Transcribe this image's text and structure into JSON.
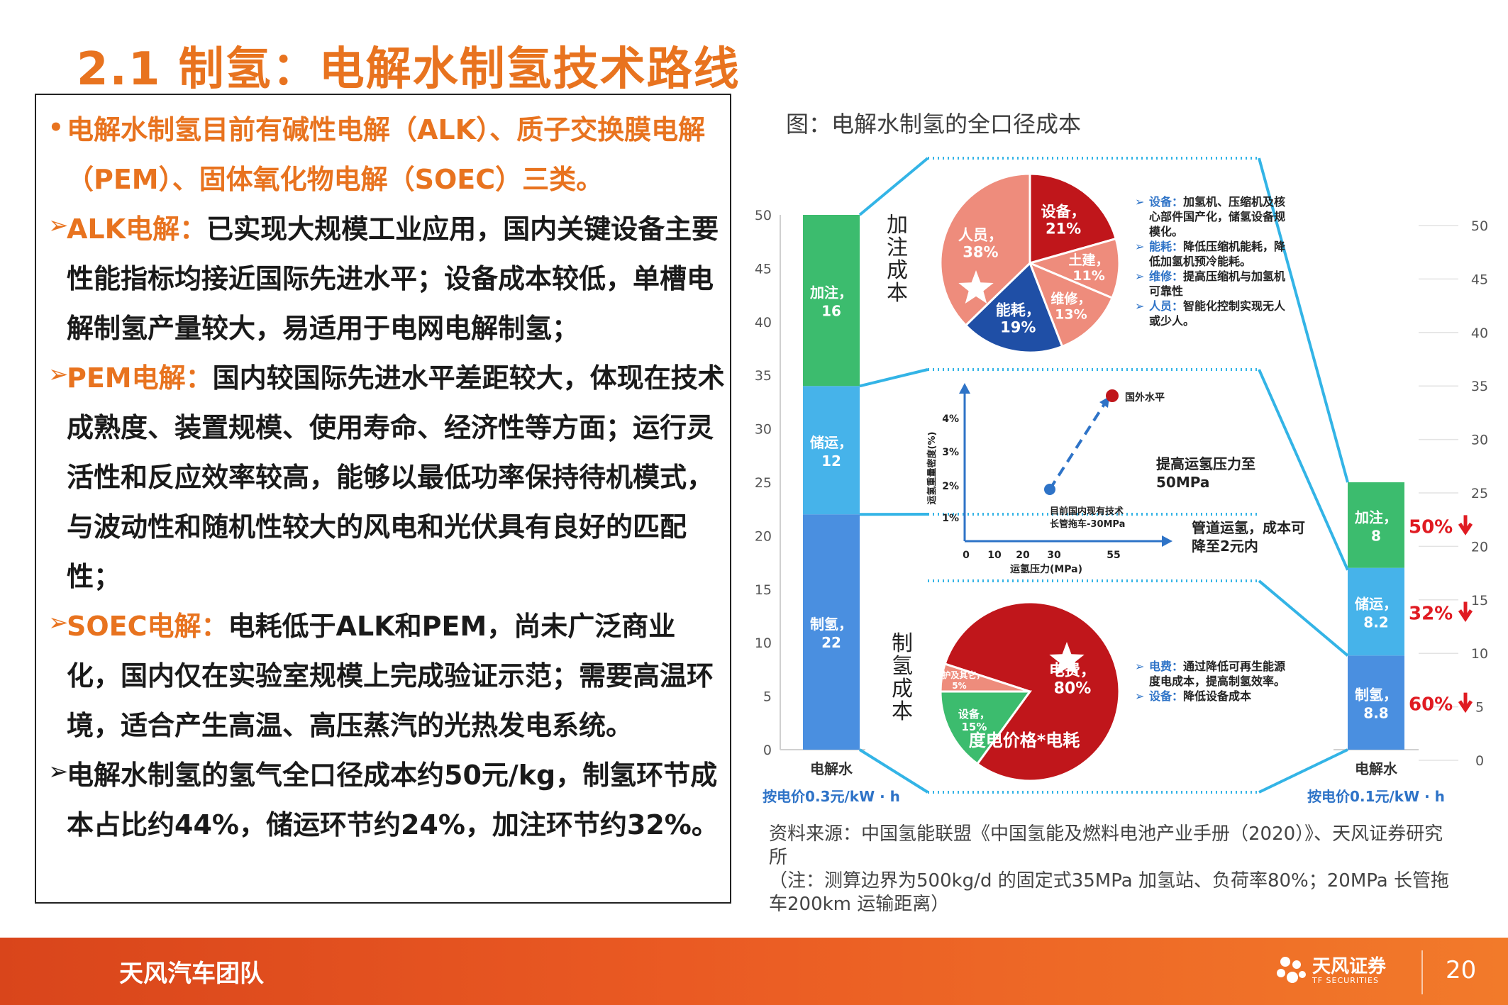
{
  "title": "2.1 制氢：电解水制氢技术路线",
  "left": {
    "p1": "电解水制氢目前有碱性电解（ALK）、质子交换膜电解（PEM）、固体氧化物电解（SOEC）三类。",
    "p2_lead": "ALK电解：",
    "p2": "已实现大规模工业应用，国内关键设备主要性能指标均接近国际先进水平；设备成本较低，单槽电解制氢产量较大，易适用于电网电解制氢；",
    "p3_lead": "PEM电解：",
    "p3": "国内较国际先进水平差距较大，体现在技术成熟度、装置规模、使用寿命、经济性等方面；运行灵活性和反应效率较高，能够以最低功率保持待机模式，与波动性和随机性较大的风电和光伏具有良好的匹配性；",
    "p4_lead": "SOEC电解：",
    "p4": "电耗低于ALK和PEM，尚未广泛商业化，国内仅在实验室规模上完成验证示范；需要高温环境，适合产生高温、高压蒸汽的光热发电系统。",
    "p5": "电解水制氢的氢气全口径成本约50元/kg，制氢环节成本占比约44%，储运环节约24%，加注环节约32%。"
  },
  "figure": {
    "caption": "图：电解水制氢的全口径成本",
    "left_bar_label": "电解水",
    "left_bar_price": "按电价0.3元/kW · h",
    "right_bar_label": "电解水",
    "right_bar_price": "按电价0.1元/kW · h",
    "refuel_vertical": "加注成本",
    "produce_vertical": "制氢成本",
    "pie_top_notes": [
      "设备：加氢机、压缩机及核心部件国产化，储氢设备规模化。",
      "能耗：降低压缩机能耗，降低加氢机预冷能耗。",
      "维修：提高压缩机与加氢机可靠性",
      "人员：智能化控制实现无人或少人。"
    ],
    "pie_bottom_notes": [
      "电费：通过降低可再生能源度电成本，提高制氢效率。",
      "设备：降低设备成本"
    ],
    "pie_bottom_center": "度电价格*电耗",
    "line_ylabel": "运氢重量密度(%)",
    "line_xlabel": "运氢压力(MPa)",
    "line_point_high": "国外水平",
    "line_point_low": "目前国内现有技术长管拖车-30MPa",
    "line_note1": "提高运氢压力至50MPa",
    "line_note2": "管道运氢，成本可降至2元内"
  },
  "chart_data": [
    {
      "type": "bar",
      "stacked": true,
      "categories": [
        "电解水（按电价0.3元/kW · h）",
        "电解水（按电价0.1元/kW · h）"
      ],
      "series": [
        {
          "name": "制氢",
          "values": [
            22,
            8.8
          ],
          "color": "#4a8fe0"
        },
        {
          "name": "储运",
          "values": [
            12,
            8.2
          ],
          "color": "#46b3ea"
        },
        {
          "name": "加注",
          "values": [
            16,
            8
          ],
          "color": "#3cbc6e"
        }
      ],
      "reductions": [
        "60%",
        "32%",
        "50%"
      ],
      "ylim": [
        0,
        50
      ],
      "yticks": [
        0,
        5,
        10,
        15,
        20,
        25,
        30,
        35,
        40,
        45,
        50
      ]
    },
    {
      "type": "pie",
      "labels": [
        "设备",
        "土建",
        "维修",
        "能耗",
        "人员"
      ],
      "values": [
        21,
        11,
        13,
        19,
        38
      ],
      "colors": [
        "#c0161b",
        "#ee8c7c",
        "#ee8c7c",
        "#1f4fa6",
        "#ee8c7c"
      ],
      "value_labels": [
        "21%",
        "11%",
        "13%",
        "19%",
        "38%"
      ]
    },
    {
      "type": "pie",
      "labels": [
        "电费",
        "设备",
        "维护及其它"
      ],
      "values": [
        80,
        15,
        5
      ],
      "colors": [
        "#c0161b",
        "#3cbc6e",
        "#ee8c7c"
      ],
      "value_labels": [
        "80%",
        "15%",
        "5%"
      ]
    },
    {
      "type": "scatter",
      "xticks": [
        "0",
        "10",
        "20",
        "30",
        "55"
      ],
      "yticks": [
        "1%",
        "2%",
        "3%",
        "4%"
      ],
      "xlabel": "运氢压力(MPa)",
      "ylabel": "运氢重量密度(%)",
      "points": [
        {
          "x": 30,
          "y": 2,
          "label": "目前国内现有技术长管拖车-30MPa"
        },
        {
          "x": 55,
          "y": 4.2,
          "label": "国外水平"
        }
      ]
    }
  ],
  "source_note": {
    "line1": "资料来源：中国氢能联盟《中国氢能及燃料电池产业手册（2020）》、天风证券研究所",
    "line2": "（注：测算边界为500kg/d 的固定式35MPa 加氢站、负荷率80%；20MPa 长管拖车200km 运输距离）"
  },
  "footer": {
    "team": "天风汽车团队",
    "brand": "天风证券",
    "brand_sub": "TF SECURITIES",
    "page": "20"
  },
  "colors": {
    "accent": "#e8731f",
    "footer": "#e95a24",
    "dark_red": "#c0161b",
    "salmon": "#ee8c7c",
    "navy": "#1f4fa6",
    "green": "#3cbc6e",
    "sky": "#46b3ea",
    "blue": "#4a8fe0"
  }
}
